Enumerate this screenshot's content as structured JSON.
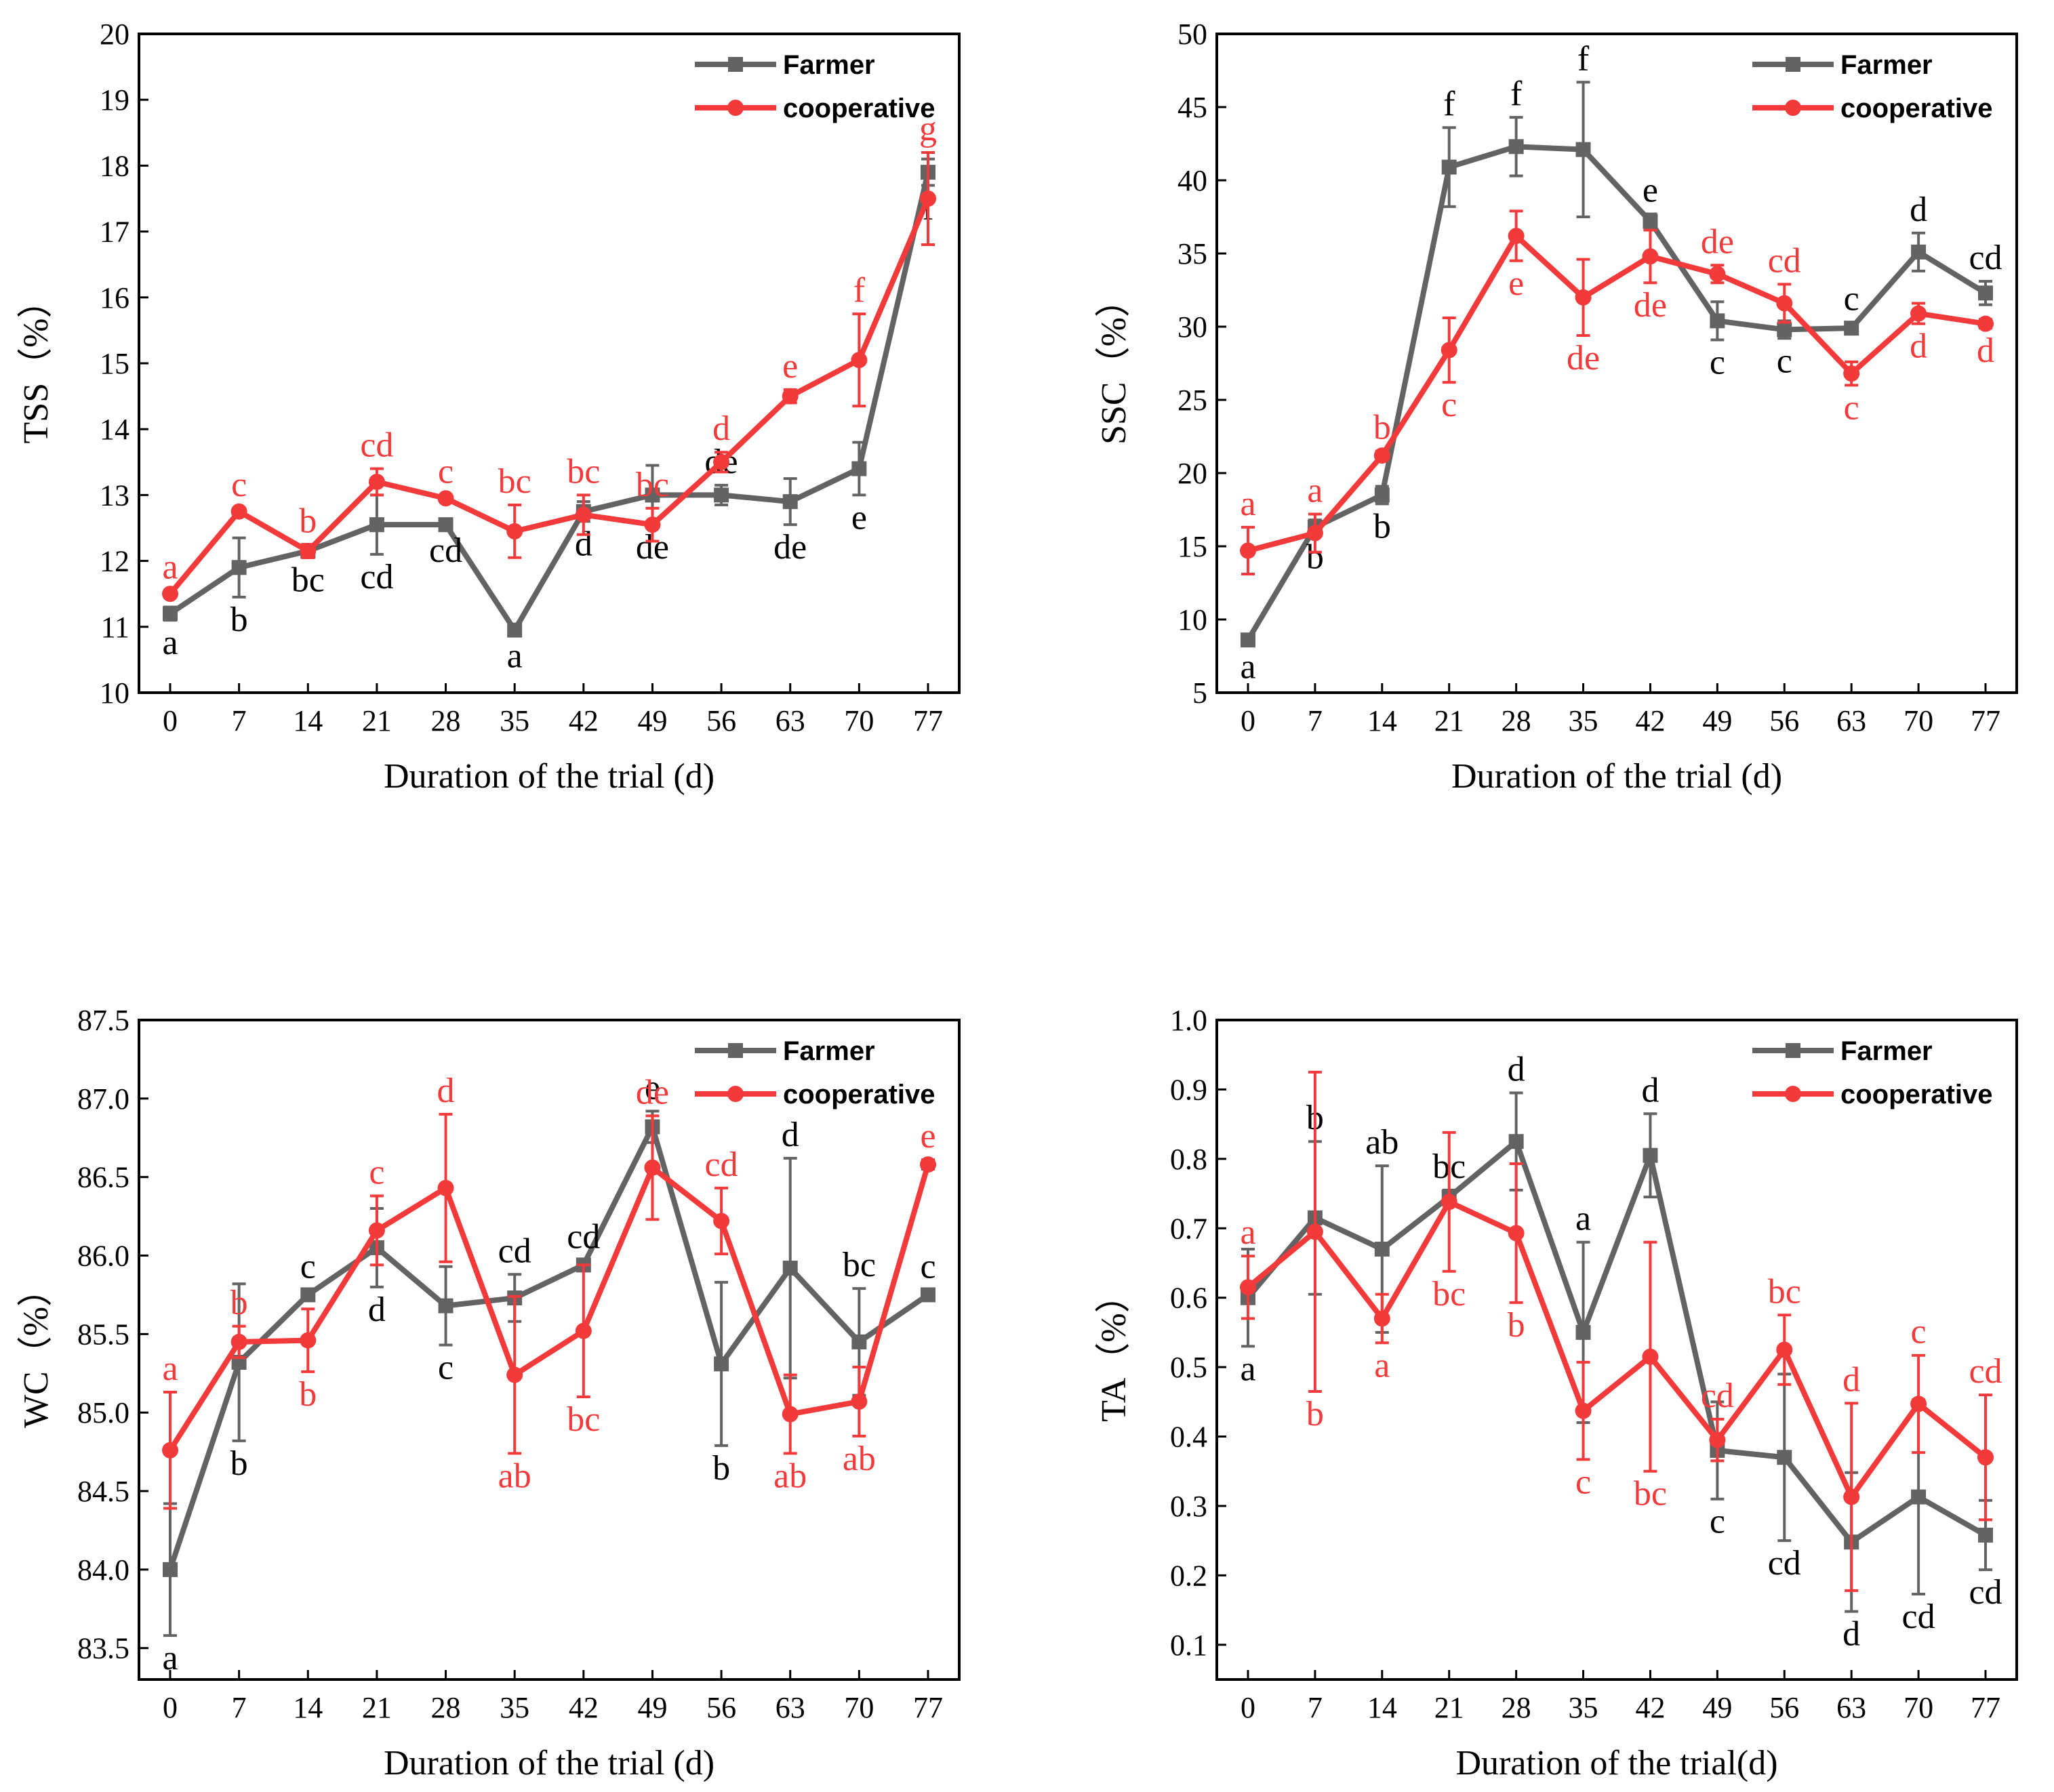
{
  "colors": {
    "farmer": "#636363",
    "cooperative": "#f33a3a",
    "axis": "#000000"
  },
  "chart_data": [
    {
      "id": "tss",
      "type": "line",
      "x": [
        0,
        7,
        14,
        21,
        28,
        35,
        42,
        49,
        56,
        63,
        70,
        77
      ],
      "xlabel": "Duration of the trial (d)",
      "ylabel": "TSS（%）",
      "ylim": [
        10,
        20
      ],
      "yticks": [
        "10",
        "11",
        "12",
        "13",
        "14",
        "15",
        "16",
        "17",
        "18",
        "19",
        "20"
      ],
      "legend_position": "top-right",
      "series": [
        {
          "name": "Farmer",
          "marker": "square",
          "values": [
            11.2,
            11.9,
            12.15,
            12.55,
            12.55,
            10.95,
            12.75,
            13.0,
            13.0,
            12.9,
            13.4,
            17.9
          ],
          "errors": [
            0.1,
            0.45,
            0.1,
            0.45,
            0.05,
            0.05,
            0.15,
            0.45,
            0.15,
            0.35,
            0.4,
            0.2
          ],
          "letters": [
            "a",
            "b",
            "bc",
            "cd",
            "cd",
            "a",
            "d",
            "de",
            "de",
            "de",
            "e",
            "f"
          ]
        },
        {
          "name": "cooperative",
          "marker": "circle",
          "values": [
            11.5,
            12.75,
            12.15,
            13.2,
            12.95,
            12.45,
            12.7,
            12.55,
            13.5,
            14.5,
            15.05,
            17.5
          ],
          "errors": [
            0.05,
            0.05,
            0.1,
            0.2,
            0.05,
            0.4,
            0.3,
            0.25,
            0.15,
            0.1,
            0.7,
            0.7
          ],
          "letters": [
            "a",
            "c",
            "b",
            "cd",
            "c",
            "bc",
            "bc",
            "bc",
            "d",
            "e",
            "f",
            "g"
          ]
        }
      ]
    },
    {
      "id": "ssc",
      "type": "line",
      "x": [
        0,
        7,
        14,
        21,
        28,
        35,
        42,
        49,
        56,
        63,
        70,
        77
      ],
      "xlabel": "Duration of the trial (d)",
      "ylabel": "SSC（%）",
      "ylim": [
        5,
        50
      ],
      "yticks": [
        "5",
        "10",
        "15",
        "20",
        "25",
        "30",
        "35",
        "40",
        "45",
        "50"
      ],
      "legend_position": "top-right",
      "series": [
        {
          "name": "Farmer",
          "marker": "square",
          "values": [
            8.6,
            16.3,
            18.5,
            40.9,
            42.3,
            42.1,
            37.2,
            30.4,
            29.8,
            29.9,
            35.1,
            32.3
          ],
          "errors": [
            0.3,
            0.5,
            0.6,
            2.7,
            2.0,
            4.6,
            0.5,
            1.3,
            0.6,
            0.4,
            1.3,
            0.8
          ],
          "letters": [
            "a",
            "b",
            "b",
            "f",
            "f",
            "f",
            "e",
            "c",
            "c",
            "c",
            "d",
            "cd"
          ]
        },
        {
          "name": "cooperative",
          "marker": "circle",
          "values": [
            14.7,
            15.9,
            21.2,
            28.4,
            36.2,
            32.0,
            34.8,
            33.6,
            31.6,
            26.8,
            30.9,
            30.2
          ],
          "errors": [
            1.6,
            1.3,
            0.3,
            2.2,
            1.7,
            2.6,
            1.8,
            0.6,
            1.3,
            0.8,
            0.7,
            0.3
          ],
          "letters": [
            "a",
            "a",
            "b",
            "c",
            "e",
            "de",
            "de",
            "de",
            "cd",
            "c",
            "d",
            "d"
          ]
        }
      ]
    },
    {
      "id": "wc",
      "type": "line",
      "x": [
        0,
        7,
        14,
        21,
        28,
        35,
        42,
        49,
        56,
        63,
        70,
        77
      ],
      "xlabel": "Duration of the trial (d)",
      "ylabel": "WC（%）",
      "ylim": [
        83.3,
        87.5
      ],
      "yticks": [
        "83.5",
        "84.0",
        "84.5",
        "85.0",
        "85.5",
        "86.0",
        "86.5",
        "87.0",
        "87.5"
      ],
      "legend_position": "top-right",
      "series": [
        {
          "name": "Farmer",
          "marker": "square",
          "values": [
            84.0,
            85.32,
            85.75,
            86.05,
            85.68,
            85.73,
            85.94,
            86.82,
            85.31,
            85.92,
            85.45,
            85.75
          ],
          "errors": [
            0.42,
            0.5,
            0.03,
            0.25,
            0.25,
            0.15,
            0.03,
            0.1,
            0.52,
            0.7,
            0.34,
            0.03
          ],
          "letters": [
            "a",
            "b",
            "c",
            "d",
            "c",
            "cd",
            "cd",
            "e",
            "b",
            "d",
            "bc",
            "c"
          ]
        },
        {
          "name": "cooperative",
          "marker": "circle",
          "values": [
            84.76,
            85.45,
            85.46,
            86.16,
            86.43,
            85.24,
            85.52,
            86.56,
            86.22,
            84.99,
            85.07,
            86.58
          ],
          "errors": [
            0.37,
            0.1,
            0.2,
            0.22,
            0.47,
            0.5,
            0.42,
            0.33,
            0.21,
            0.25,
            0.22,
            0.03
          ],
          "letters": [
            "a",
            "b",
            "b",
            "c",
            "d",
            "ab",
            "bc",
            "de",
            "cd",
            "ab",
            "ab",
            "e"
          ]
        }
      ]
    },
    {
      "id": "ta",
      "type": "line",
      "x": [
        0,
        7,
        14,
        21,
        28,
        35,
        42,
        49,
        56,
        63,
        70,
        77
      ],
      "xlabel": "Duration of the trial(d)",
      "ylabel": "TA（%）",
      "ylim": [
        0.05,
        1.0
      ],
      "yticks": [
        "0.1",
        "0.2",
        "0.3",
        "0.4",
        "0.5",
        "0.6",
        "0.7",
        "0.8",
        "0.9",
        "1.0"
      ],
      "legend_position": "top-right",
      "series": [
        {
          "name": "Farmer",
          "marker": "square",
          "values": [
            0.6,
            0.715,
            0.67,
            0.745,
            0.825,
            0.55,
            0.805,
            0.38,
            0.37,
            0.248,
            0.313,
            0.258
          ],
          "errors": [
            0.07,
            0.11,
            0.12,
            0.01,
            0.07,
            0.13,
            0.06,
            0.07,
            0.12,
            0.1,
            0.14,
            0.05
          ],
          "letters": [
            "a",
            "b",
            "ab",
            "bc",
            "d",
            "a",
            "d",
            "c",
            "cd",
            "d",
            "cd",
            "cd"
          ]
        },
        {
          "name": "cooperative",
          "marker": "circle",
          "values": [
            0.615,
            0.695,
            0.57,
            0.738,
            0.693,
            0.437,
            0.515,
            0.395,
            0.525,
            0.313,
            0.447,
            0.37
          ],
          "errors": [
            0.045,
            0.23,
            0.035,
            0.1,
            0.1,
            0.07,
            0.165,
            0.03,
            0.05,
            0.135,
            0.07,
            0.09
          ],
          "letters": [
            "a",
            "b",
            "a",
            "bc",
            "b",
            "c",
            "bc",
            "cd",
            "bc",
            "d",
            "c",
            "cd"
          ]
        }
      ]
    }
  ]
}
